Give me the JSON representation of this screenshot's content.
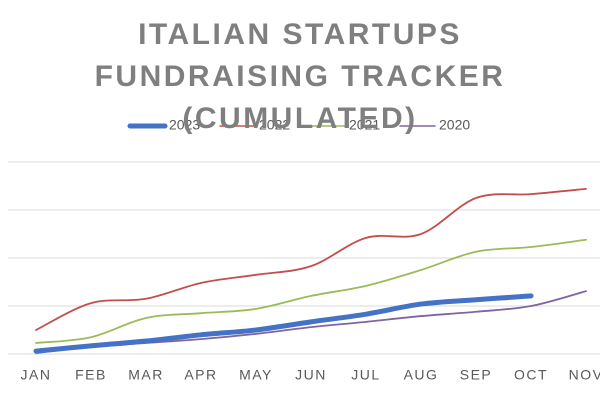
{
  "chart_data": {
    "type": "line",
    "title": "ITALIAN STARTUPS FUNDRAISING TRACKER (CUMULATED)",
    "categories": [
      "JAN",
      "FEB",
      "MAR",
      "APR",
      "MAY",
      "JUN",
      "JUL",
      "AUG",
      "SEP",
      "OCT",
      "NOV"
    ],
    "series": [
      {
        "name": "2023",
        "color": "#4472c4",
        "values": [
          0.06,
          0.17,
          0.27,
          0.4,
          0.5,
          0.67,
          0.83,
          1.04,
          1.13,
          1.21,
          null
        ]
      },
      {
        "name": "2022",
        "color": "#c0504d",
        "values": [
          0.5,
          1.06,
          1.15,
          1.48,
          1.65,
          1.83,
          2.42,
          2.5,
          3.25,
          3.33,
          3.44
        ]
      },
      {
        "name": "2021",
        "color": "#9bbb59",
        "values": [
          0.23,
          0.35,
          0.75,
          0.85,
          0.94,
          1.21,
          1.42,
          1.75,
          2.13,
          2.23,
          2.38
        ]
      },
      {
        "name": "2020",
        "color": "#8064a2",
        "values": [
          0.02,
          0.15,
          0.23,
          0.31,
          0.42,
          0.56,
          0.67,
          0.79,
          0.88,
          1.0,
          1.31
        ]
      }
    ],
    "ylim": [
      0,
      4
    ],
    "yticks": [
      0,
      1,
      2,
      3,
      4
    ],
    "grid": true,
    "legend": "top"
  }
}
